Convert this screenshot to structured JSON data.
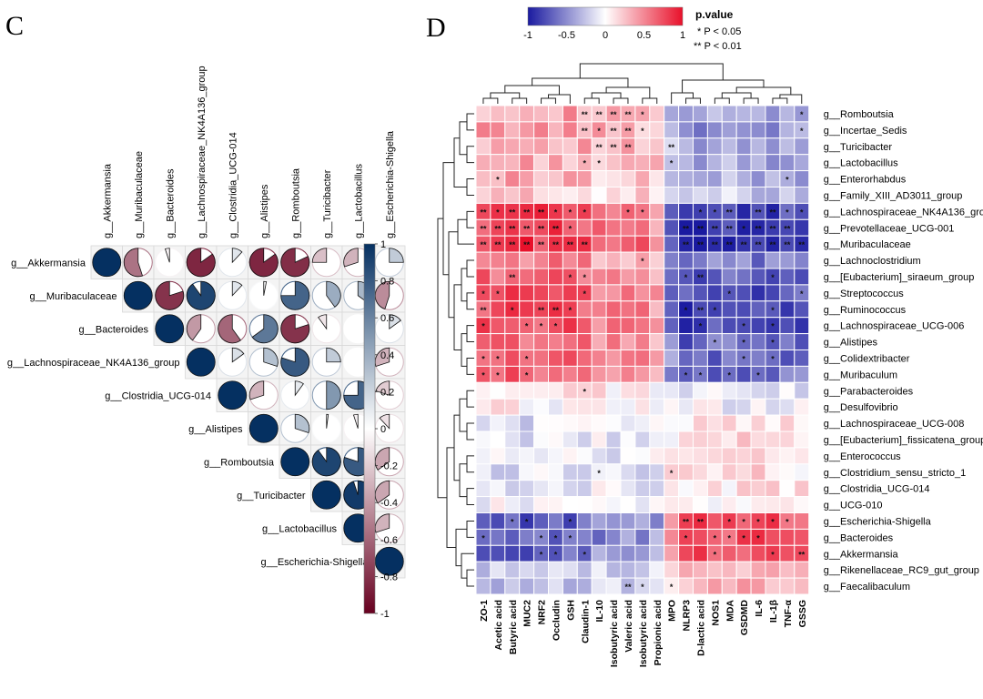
{
  "panels": {
    "c_letter": "C",
    "d_letter": "D"
  },
  "chart_data": [
    {
      "type": "heatmap",
      "subtype": "correlation-pie-matrix",
      "layout": "upper-triangle",
      "labels": [
        "g__Akkermansia",
        "g__Muribaculaceae",
        "g__Bacteroides",
        "g__Lachnospiraceae_NK4A136_group",
        "g__Clostridia_UCG-014",
        "g__Alistipes",
        "g__Romboutsia",
        "g__Turicibacter",
        "g__Lactobacillus",
        "g__Escherichia-Shigella"
      ],
      "colorbar": {
        "ticks": [
          "1",
          "0.8",
          "0.6",
          "0.4",
          "0.2",
          "0",
          "-0.2",
          "-0.4",
          "-0.6",
          "-0.8",
          "-1"
        ],
        "range": [
          -1,
          1
        ],
        "colors": {
          "negative": "#67001f",
          "neutral": "#ffffff",
          "positive": "#053061"
        }
      },
      "matrix": [
        [
          1.0,
          -0.55,
          -0.05,
          -0.85,
          0.12,
          -0.85,
          -0.82,
          -0.25,
          -0.3,
          0.25
        ],
        [
          null,
          1.0,
          -0.8,
          0.9,
          0.12,
          0.03,
          0.75,
          0.4,
          0.35,
          -0.45
        ],
        [
          null,
          null,
          1.0,
          -0.4,
          -0.6,
          0.65,
          -0.8,
          -0.1,
          0.0,
          0.15
        ],
        [
          null,
          null,
          null,
          1.0,
          0.15,
          0.3,
          0.8,
          0.25,
          0.0,
          -0.3
        ],
        [
          null,
          null,
          null,
          null,
          1.0,
          -0.3,
          0.1,
          0.5,
          0.75,
          -0.2
        ],
        [
          null,
          null,
          null,
          null,
          null,
          1.0,
          0.3,
          0.02,
          -0.05,
          -0.12
        ],
        [
          null,
          null,
          null,
          null,
          null,
          null,
          1.0,
          0.9,
          0.8,
          -0.35
        ],
        [
          null,
          null,
          null,
          null,
          null,
          null,
          null,
          1.0,
          0.95,
          -0.35
        ],
        [
          null,
          null,
          null,
          null,
          null,
          null,
          null,
          null,
          1.0,
          -0.3
        ],
        [
          null,
          null,
          null,
          null,
          null,
          null,
          null,
          null,
          null,
          1.0
        ]
      ]
    },
    {
      "type": "heatmap",
      "subtype": "clustered-correlation",
      "legend": {
        "title": "p.value",
        "ticks": [
          "-1",
          "-0.5",
          "0",
          "0.5",
          "1"
        ],
        "star1": "*  P < 0.05",
        "star2": "**  P < 0.01",
        "colors": {
          "negative": "#1a1aa0",
          "neutral": "#ffffff",
          "positive": "#e8102a"
        }
      },
      "columns": [
        "ZO-1",
        "Acetic acid",
        "Butyric acid",
        "MUC2",
        "NRF2",
        "Occludin",
        "GSH",
        "Claudin-1",
        "IL-10",
        "Isobutyric acid",
        "Valeric acid",
        "Isobutyric acid",
        "Propionic acid",
        "MPO",
        "NLRP3",
        "D-lactic acid",
        "NOS1",
        "MDA",
        "GSDMD",
        "IL-6",
        "IL-1β",
        "TNF-α",
        "GSSG"
      ],
      "rows": [
        "g__Romboutsia",
        "g__Incertae_Sedis",
        "g__Turicibacter",
        "g__Lactobacillus",
        "g__Enterorhabdus",
        "g__Family_XIII_AD3011_group",
        "g__Lachnospiraceae_NK4A136_group",
        "g__Prevotellaceae_UCG-001",
        "g__Muribaculaceae",
        "g__Lachnoclostridium",
        "g__[Eubacterium]_siraeum_group",
        "g__Streptococcus",
        "g__Ruminococcus",
        "g__Lachnospiraceae_UCG-006",
        "g__Alistipes",
        "g__Colidextribacter",
        "g__Muribaculum",
        "g__Parabacteroides",
        "g__Desulfovibrio",
        "g__Lachnospiraceae_UCG-008",
        "g__[Eubacterium]_fissicatena_group",
        "g__Enterococcus",
        "g__Clostridium_sensu_stricto_1",
        "g__Clostridia_UCG-014",
        "g__UCG-010",
        "g__Escherichia-Shigella",
        "g__Bacteroides",
        "g__Akkermansia",
        "g__Rikenellaceae_RC9_gut_group",
        "g__Faecalibaculum"
      ],
      "row_profiles": [
        0.45,
        0.5,
        0.45,
        0.4,
        0.4,
        0.25,
        0.9,
        0.9,
        0.95,
        0.6,
        0.75,
        0.8,
        0.85,
        0.85,
        0.7,
        0.75,
        0.7,
        0.1,
        0.05,
        -0.15,
        -0.15,
        -0.1,
        -0.15,
        -0.1,
        -0.05,
        -0.8,
        -0.8,
        -0.75,
        -0.3,
        -0.35
      ],
      "column_profiles": [
        0.7,
        0.75,
        0.8,
        0.8,
        0.75,
        0.75,
        0.75,
        0.7,
        0.55,
        0.55,
        0.55,
        0.55,
        0.45,
        -0.6,
        -0.85,
        -0.85,
        -0.8,
        -0.8,
        -0.8,
        -0.85,
        -0.8,
        -0.75,
        -0.75
      ],
      "stars": [
        {
          "r": 0,
          "c": 7,
          "s": "**"
        },
        {
          "r": 0,
          "c": 8,
          "s": "**"
        },
        {
          "r": 0,
          "c": 9,
          "s": "**"
        },
        {
          "r": 0,
          "c": 10,
          "s": "**"
        },
        {
          "r": 0,
          "c": 11,
          "s": "*"
        },
        {
          "r": 0,
          "c": 22,
          "s": "*"
        },
        {
          "r": 1,
          "c": 7,
          "s": "**"
        },
        {
          "r": 1,
          "c": 8,
          "s": "*"
        },
        {
          "r": 1,
          "c": 9,
          "s": "**"
        },
        {
          "r": 1,
          "c": 10,
          "s": "**"
        },
        {
          "r": 1,
          "c": 11,
          "s": "*"
        },
        {
          "r": 1,
          "c": 22,
          "s": "*"
        },
        {
          "r": 2,
          "c": 8,
          "s": "**"
        },
        {
          "r": 2,
          "c": 9,
          "s": "**"
        },
        {
          "r": 2,
          "c": 10,
          "s": "**"
        },
        {
          "r": 2,
          "c": 13,
          "s": "**"
        },
        {
          "r": 3,
          "c": 7,
          "s": "*"
        },
        {
          "r": 3,
          "c": 8,
          "s": "*"
        },
        {
          "r": 3,
          "c": 13,
          "s": "*"
        },
        {
          "r": 4,
          "c": 1,
          "s": "*"
        },
        {
          "r": 4,
          "c": 21,
          "s": "*"
        },
        {
          "r": 6,
          "c": 0,
          "s": "**"
        },
        {
          "r": 6,
          "c": 1,
          "s": "*"
        },
        {
          "r": 6,
          "c": 2,
          "s": "**"
        },
        {
          "r": 6,
          "c": 3,
          "s": "**"
        },
        {
          "r": 6,
          "c": 4,
          "s": "**"
        },
        {
          "r": 6,
          "c": 5,
          "s": "*"
        },
        {
          "r": 6,
          "c": 6,
          "s": "*"
        },
        {
          "r": 6,
          "c": 7,
          "s": "*"
        },
        {
          "r": 6,
          "c": 10,
          "s": "*"
        },
        {
          "r": 6,
          "c": 11,
          "s": "*"
        },
        {
          "r": 6,
          "c": 15,
          "s": "*"
        },
        {
          "r": 6,
          "c": 16,
          "s": "*"
        },
        {
          "r": 6,
          "c": 17,
          "s": "**"
        },
        {
          "r": 6,
          "c": 19,
          "s": "**"
        },
        {
          "r": 6,
          "c": 20,
          "s": "**"
        },
        {
          "r": 6,
          "c": 21,
          "s": "*"
        },
        {
          "r": 6,
          "c": 22,
          "s": "*"
        },
        {
          "r": 7,
          "c": 0,
          "s": "**"
        },
        {
          "r": 7,
          "c": 1,
          "s": "**"
        },
        {
          "r": 7,
          "c": 2,
          "s": "**"
        },
        {
          "r": 7,
          "c": 3,
          "s": "**"
        },
        {
          "r": 7,
          "c": 4,
          "s": "**"
        },
        {
          "r": 7,
          "c": 5,
          "s": "**"
        },
        {
          "r": 7,
          "c": 6,
          "s": "*"
        },
        {
          "r": 7,
          "c": 14,
          "s": "**"
        },
        {
          "r": 7,
          "c": 15,
          "s": "**"
        },
        {
          "r": 7,
          "c": 16,
          "s": "**"
        },
        {
          "r": 7,
          "c": 17,
          "s": "**"
        },
        {
          "r": 7,
          "c": 18,
          "s": "*"
        },
        {
          "r": 7,
          "c": 19,
          "s": "**"
        },
        {
          "r": 7,
          "c": 20,
          "s": "**"
        },
        {
          "r": 7,
          "c": 21,
          "s": "**"
        },
        {
          "r": 8,
          "c": 0,
          "s": "**"
        },
        {
          "r": 8,
          "c": 1,
          "s": "**"
        },
        {
          "r": 8,
          "c": 2,
          "s": "**"
        },
        {
          "r": 8,
          "c": 3,
          "s": "**"
        },
        {
          "r": 8,
          "c": 4,
          "s": "**"
        },
        {
          "r": 8,
          "c": 5,
          "s": "**"
        },
        {
          "r": 8,
          "c": 6,
          "s": "**"
        },
        {
          "r": 8,
          "c": 7,
          "s": "**"
        },
        {
          "r": 8,
          "c": 14,
          "s": "**"
        },
        {
          "r": 8,
          "c": 15,
          "s": "**"
        },
        {
          "r": 8,
          "c": 16,
          "s": "**"
        },
        {
          "r": 8,
          "c": 17,
          "s": "**"
        },
        {
          "r": 8,
          "c": 18,
          "s": "**"
        },
        {
          "r": 8,
          "c": 19,
          "s": "**"
        },
        {
          "r": 8,
          "c": 20,
          "s": "**"
        },
        {
          "r": 8,
          "c": 21,
          "s": "**"
        },
        {
          "r": 8,
          "c": 22,
          "s": "**"
        },
        {
          "r": 9,
          "c": 11,
          "s": "*"
        },
        {
          "r": 10,
          "c": 2,
          "s": "**"
        },
        {
          "r": 10,
          "c": 6,
          "s": "*"
        },
        {
          "r": 10,
          "c": 7,
          "s": "*"
        },
        {
          "r": 10,
          "c": 14,
          "s": "*"
        },
        {
          "r": 10,
          "c": 15,
          "s": "**"
        },
        {
          "r": 10,
          "c": 20,
          "s": "*"
        },
        {
          "r": 11,
          "c": 0,
          "s": "*"
        },
        {
          "r": 11,
          "c": 1,
          "s": "*"
        },
        {
          "r": 11,
          "c": 7,
          "s": "*"
        },
        {
          "r": 11,
          "c": 17,
          "s": "*"
        },
        {
          "r": 11,
          "c": 22,
          "s": "*"
        },
        {
          "r": 12,
          "c": 0,
          "s": "**"
        },
        {
          "r": 12,
          "c": 2,
          "s": "*"
        },
        {
          "r": 12,
          "c": 4,
          "s": "**"
        },
        {
          "r": 12,
          "c": 5,
          "s": "**"
        },
        {
          "r": 12,
          "c": 6,
          "s": "*"
        },
        {
          "r": 12,
          "c": 14,
          "s": "*"
        },
        {
          "r": 12,
          "c": 15,
          "s": "**"
        },
        {
          "r": 12,
          "c": 16,
          "s": "*"
        },
        {
          "r": 12,
          "c": 20,
          "s": "*"
        },
        {
          "r": 13,
          "c": 0,
          "s": "*"
        },
        {
          "r": 13,
          "c": 3,
          "s": "*"
        },
        {
          "r": 13,
          "c": 4,
          "s": "*"
        },
        {
          "r": 13,
          "c": 5,
          "s": "*"
        },
        {
          "r": 13,
          "c": 15,
          "s": "*"
        },
        {
          "r": 13,
          "c": 18,
          "s": "*"
        },
        {
          "r": 13,
          "c": 20,
          "s": "*"
        },
        {
          "r": 14,
          "c": 16,
          "s": "*"
        },
        {
          "r": 14,
          "c": 18,
          "s": "*"
        },
        {
          "r": 14,
          "c": 20,
          "s": "*"
        },
        {
          "r": 15,
          "c": 0,
          "s": "*"
        },
        {
          "r": 15,
          "c": 1,
          "s": "*"
        },
        {
          "r": 15,
          "c": 3,
          "s": "*"
        },
        {
          "r": 15,
          "c": 18,
          "s": "*"
        },
        {
          "r": 15,
          "c": 20,
          "s": "*"
        },
        {
          "r": 16,
          "c": 0,
          "s": "*"
        },
        {
          "r": 16,
          "c": 1,
          "s": "*"
        },
        {
          "r": 16,
          "c": 3,
          "s": "*"
        },
        {
          "r": 16,
          "c": 14,
          "s": "*"
        },
        {
          "r": 16,
          "c": 15,
          "s": "*"
        },
        {
          "r": 16,
          "c": 17,
          "s": "*"
        },
        {
          "r": 16,
          "c": 19,
          "s": "*"
        },
        {
          "r": 17,
          "c": 7,
          "s": "*"
        },
        {
          "r": 22,
          "c": 8,
          "s": "*"
        },
        {
          "r": 22,
          "c": 13,
          "s": "*"
        },
        {
          "r": 25,
          "c": 2,
          "s": "*"
        },
        {
          "r": 25,
          "c": 3,
          "s": "*"
        },
        {
          "r": 25,
          "c": 6,
          "s": "*"
        },
        {
          "r": 25,
          "c": 14,
          "s": "**"
        },
        {
          "r": 25,
          "c": 15,
          "s": "**"
        },
        {
          "r": 25,
          "c": 17,
          "s": "*"
        },
        {
          "r": 25,
          "c": 18,
          "s": "*"
        },
        {
          "r": 25,
          "c": 19,
          "s": "*"
        },
        {
          "r": 25,
          "c": 20,
          "s": "*"
        },
        {
          "r": 25,
          "c": 21,
          "s": "*"
        },
        {
          "r": 26,
          "c": 0,
          "s": "*"
        },
        {
          "r": 26,
          "c": 4,
          "s": "*"
        },
        {
          "r": 26,
          "c": 5,
          "s": "*"
        },
        {
          "r": 26,
          "c": 6,
          "s": "*"
        },
        {
          "r": 26,
          "c": 14,
          "s": "*"
        },
        {
          "r": 26,
          "c": 16,
          "s": "*"
        },
        {
          "r": 26,
          "c": 17,
          "s": "*"
        },
        {
          "r": 26,
          "c": 18,
          "s": "*"
        },
        {
          "r": 26,
          "c": 19,
          "s": "*"
        },
        {
          "r": 27,
          "c": 4,
          "s": "*"
        },
        {
          "r": 27,
          "c": 5,
          "s": "*"
        },
        {
          "r": 27,
          "c": 7,
          "s": "*"
        },
        {
          "r": 27,
          "c": 16,
          "s": "*"
        },
        {
          "r": 27,
          "c": 20,
          "s": "*"
        },
        {
          "r": 27,
          "c": 22,
          "s": "**"
        },
        {
          "r": 29,
          "c": 10,
          "s": "**"
        },
        {
          "r": 29,
          "c": 11,
          "s": "*"
        },
        {
          "r": 29,
          "c": 13,
          "s": "*"
        }
      ]
    }
  ]
}
